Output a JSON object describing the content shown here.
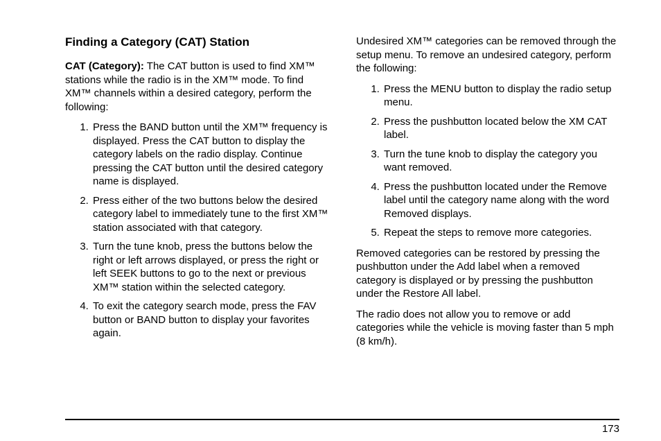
{
  "page": {
    "number": "173",
    "heading": "Finding a Category (CAT) Station",
    "intro_label": "CAT (Category):",
    "intro_text": " The CAT button is used to find XM™ stations while the radio is in the XM™ mode. To find XM™ channels within a desired category, perform the following:",
    "left_steps": [
      "Press the BAND button until the XM™ frequency is displayed. Press the CAT button to display the category labels on the radio display. Continue pressing the CAT button until the desired category name is displayed.",
      "Press either of the two buttons below the desired category label to immediately tune to the first XM™ station associated with that category.",
      "Turn the tune knob, press the buttons below the right or left arrows displayed, or press the right or left SEEK buttons to go to the next or previous XM™ station within the selected category.",
      "To exit the category search mode, press the FAV button or BAND button to display your favorites again."
    ],
    "right_intro": "Undesired XM™ categories can be removed through the setup menu. To remove an undesired category, perform the following:",
    "right_steps": [
      "Press the MENU button to display the radio setup menu.",
      "Press the pushbutton located below the XM CAT label.",
      "Turn the tune knob to display the category you want removed.",
      "Press the pushbutton located under the Remove label until the category name along with the word Removed displays.",
      "Repeat the steps to remove more categories."
    ],
    "right_para1": "Removed categories can be restored by pressing the pushbutton under the Add label when a removed category is displayed or by pressing the pushbutton under the Restore All label.",
    "right_para2": "The radio does not allow you to remove or add categories while the vehicle is moving faster than 5 mph (8 km/h)."
  }
}
